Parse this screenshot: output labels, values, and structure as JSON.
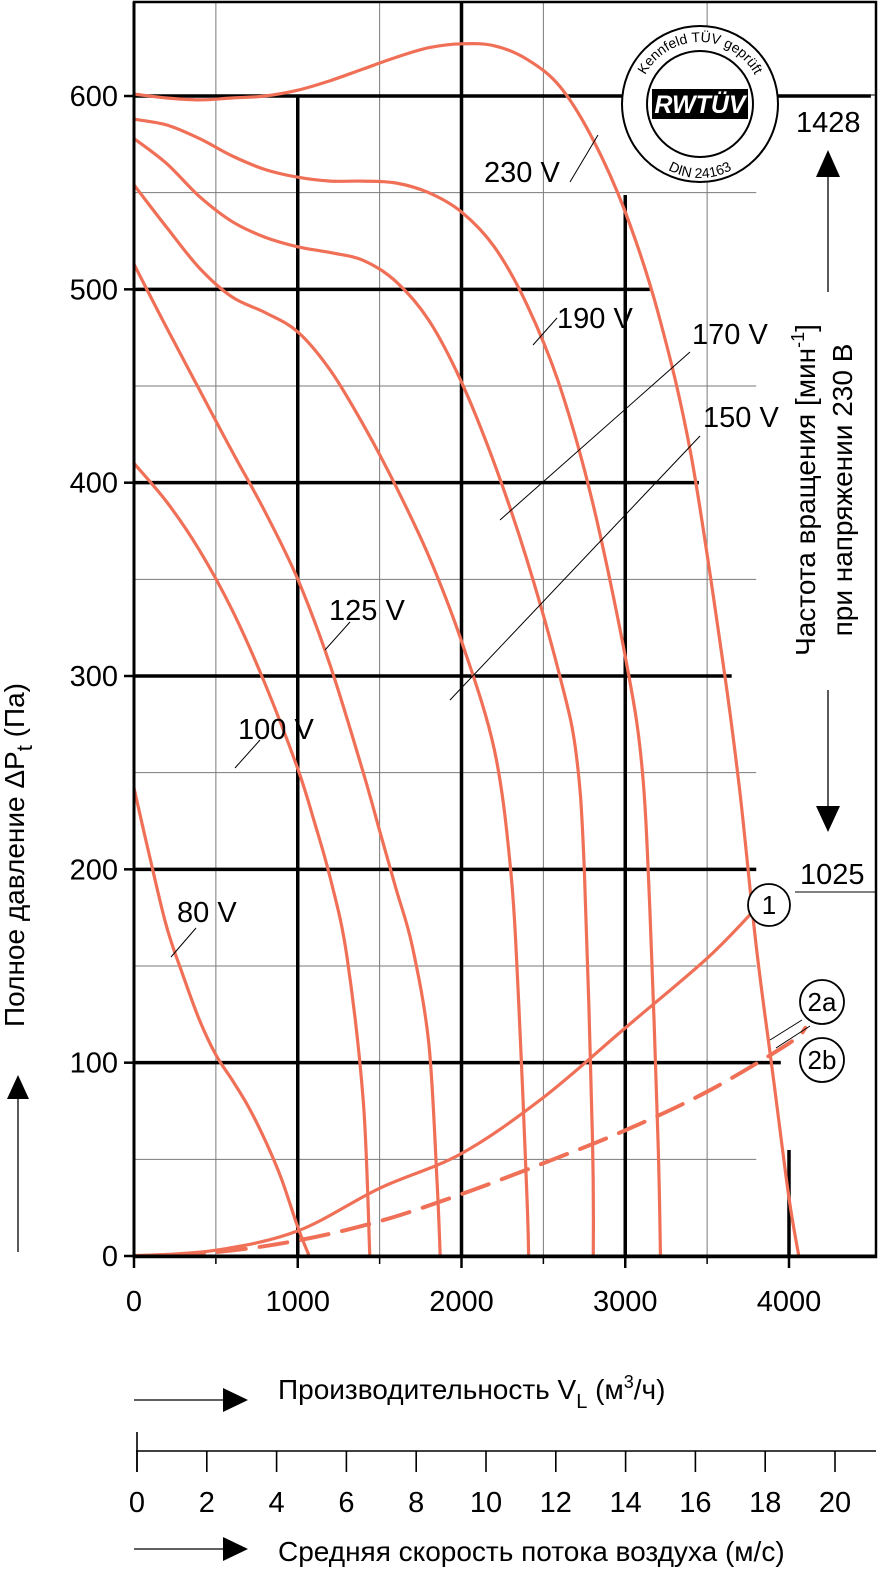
{
  "chart_data": {
    "type": "line",
    "ylabel_main": "Полное давление ΔP",
    "ylabel_sub": "t",
    "ylabel_unit": " (Па)",
    "xlabel_main": "Производительность V",
    "xlabel_sub": "L",
    "xlabel_unit_pre": " (м",
    "xlabel_unit_sup": "3",
    "xlabel_unit_post": "/ч)",
    "x2label": "Средняя скорость потока воздуха (м/с)",
    "xlim": [
      0,
      4500
    ],
    "ylim": [
      0,
      600
    ],
    "x_ticks": [
      "0",
      "1000",
      "2000",
      "3000",
      "4000"
    ],
    "x_tick_values": [
      0,
      1000,
      2000,
      3000,
      4000
    ],
    "y_ticks": [
      "0",
      "100",
      "200",
      "300",
      "400",
      "500",
      "600"
    ],
    "y_tick_values": [
      0,
      100,
      200,
      300,
      400,
      500,
      600
    ],
    "x2_ticks": [
      "0",
      "2",
      "4",
      "6",
      "8",
      "10",
      "12",
      "14",
      "16",
      "18",
      "20"
    ],
    "x2_tick_values": [
      0,
      2,
      4,
      6,
      8,
      10,
      12,
      14,
      16,
      18,
      20
    ],
    "series": [
      {
        "name": "230 V",
        "color": "#f07057",
        "points": [
          [
            0,
            601
          ],
          [
            200,
            599
          ],
          [
            400,
            598
          ],
          [
            600,
            599
          ],
          [
            800,
            600
          ],
          [
            1000,
            603
          ],
          [
            1200,
            608
          ],
          [
            1400,
            614
          ],
          [
            1600,
            620
          ],
          [
            1800,
            625
          ],
          [
            2000,
            627
          ],
          [
            2200,
            626
          ],
          [
            2400,
            619
          ],
          [
            2600,
            605
          ],
          [
            2800,
            578
          ],
          [
            3000,
            540
          ],
          [
            3200,
            488
          ],
          [
            3400,
            415
          ],
          [
            3600,
            305
          ],
          [
            3700,
            240
          ],
          [
            3800,
            160
          ],
          [
            3900,
            95
          ],
          [
            4000,
            30
          ],
          [
            4060,
            0
          ]
        ]
      },
      {
        "name": "",
        "color": "#f07057",
        "points": [
          [
            0,
            588
          ],
          [
            200,
            585
          ],
          [
            400,
            578
          ],
          [
            600,
            569
          ],
          [
            800,
            562
          ],
          [
            1000,
            558
          ],
          [
            1200,
            556
          ],
          [
            1400,
            556
          ],
          [
            1600,
            555
          ],
          [
            1800,
            550
          ],
          [
            2000,
            540
          ],
          [
            2200,
            522
          ],
          [
            2400,
            492
          ],
          [
            2600,
            450
          ],
          [
            2800,
            390
          ],
          [
            3000,
            310
          ],
          [
            3100,
            255
          ],
          [
            3150,
            180
          ],
          [
            3200,
            60
          ],
          [
            3215,
            0
          ]
        ]
      },
      {
        "name": "190 V",
        "color": "#f07057",
        "points": [
          [
            0,
            578
          ],
          [
            200,
            565
          ],
          [
            400,
            548
          ],
          [
            600,
            535
          ],
          [
            800,
            527
          ],
          [
            1000,
            522
          ],
          [
            1200,
            519
          ],
          [
            1400,
            515
          ],
          [
            1600,
            504
          ],
          [
            1800,
            484
          ],
          [
            2000,
            452
          ],
          [
            2200,
            410
          ],
          [
            2400,
            360
          ],
          [
            2600,
            300
          ],
          [
            2700,
            260
          ],
          [
            2750,
            200
          ],
          [
            2800,
            60
          ],
          [
            2805,
            0
          ]
        ]
      },
      {
        "name": "170 V",
        "color": "#f07057",
        "points": [
          [
            0,
            554
          ],
          [
            200,
            532
          ],
          [
            400,
            511
          ],
          [
            600,
            496
          ],
          [
            800,
            488
          ],
          [
            1000,
            478
          ],
          [
            1200,
            458
          ],
          [
            1400,
            430
          ],
          [
            1600,
            398
          ],
          [
            1800,
            362
          ],
          [
            2000,
            318
          ],
          [
            2200,
            262
          ],
          [
            2300,
            200
          ],
          [
            2350,
            130
          ],
          [
            2400,
            30
          ],
          [
            2410,
            0
          ]
        ]
      },
      {
        "name": "150 V",
        "color": "#f07057",
        "points": [
          [
            0,
            513
          ],
          [
            200,
            480
          ],
          [
            400,
            448
          ],
          [
            600,
            416
          ],
          [
            800,
            385
          ],
          [
            1000,
            350
          ],
          [
            1200,
            305
          ],
          [
            1400,
            250
          ],
          [
            1500,
            220
          ],
          [
            1600,
            190
          ],
          [
            1700,
            160
          ],
          [
            1800,
            110
          ],
          [
            1850,
            40
          ],
          [
            1870,
            0
          ]
        ]
      },
      {
        "name": "125 V",
        "color": "#f07057",
        "points": [
          [
            0,
            410
          ],
          [
            200,
            390
          ],
          [
            400,
            365
          ],
          [
            600,
            334
          ],
          [
            800,
            296
          ],
          [
            1000,
            252
          ],
          [
            1100,
            225
          ],
          [
            1200,
            195
          ],
          [
            1300,
            155
          ],
          [
            1400,
            80
          ],
          [
            1440,
            0
          ]
        ]
      },
      {
        "name": "100 V",
        "color": "#f07057",
        "points": [
          [
            0,
            242
          ],
          [
            100,
            205
          ],
          [
            200,
            170
          ],
          [
            300,
            145
          ],
          [
            400,
            122
          ],
          [
            500,
            104
          ],
          [
            600,
            91
          ],
          [
            700,
            77
          ],
          [
            800,
            60
          ],
          [
            900,
            40
          ],
          [
            1000,
            15
          ],
          [
            1070,
            0
          ]
        ]
      },
      {
        "name": "80 V",
        "color": "#f07057",
        "points": []
      },
      {
        "name": "1",
        "color": "#f07057",
        "dashed": false,
        "points": [
          [
            0,
            0
          ],
          [
            500,
            3
          ],
          [
            1000,
            13
          ],
          [
            1500,
            35
          ],
          [
            2000,
            53
          ],
          [
            2500,
            82
          ],
          [
            3000,
            118
          ],
          [
            3500,
            154
          ],
          [
            3800,
            180
          ]
        ]
      },
      {
        "name": "2a",
        "color": "#f07057",
        "dashed": true,
        "points": [
          [
            0,
            0
          ],
          [
            500,
            2
          ],
          [
            1000,
            8
          ],
          [
            1500,
            18
          ],
          [
            2000,
            32
          ],
          [
            2500,
            48
          ],
          [
            3000,
            65
          ],
          [
            3500,
            85
          ],
          [
            4000,
            110
          ],
          [
            4100,
            118
          ]
        ]
      },
      {
        "name": "2b",
        "color": "#f07057",
        "dashed": true,
        "points": []
      }
    ],
    "rpm_label_line1": "Частота вращения [мин",
    "rpm_label_sup": "-1",
    "rpm_label_line1_end": "]",
    "rpm_label_line2": "при напряжении 230 В",
    "rpm_max": "1428",
    "rpm_min": "1025",
    "series_labels": [
      "230 V",
      "190 V",
      "170 V",
      "150 V",
      "125 V",
      "100 V",
      "80 V"
    ],
    "markers": [
      "1",
      "2a",
      "2b"
    ]
  },
  "badge": {
    "top_text": "Kennfeld TÜV geprüft",
    "logo_text": "RWTÜV",
    "bottom_text": "DIN 24163"
  },
  "colors": {
    "curve": "#f07057",
    "grid_major": "#000000",
    "grid_minor": "#7a7a7a"
  }
}
